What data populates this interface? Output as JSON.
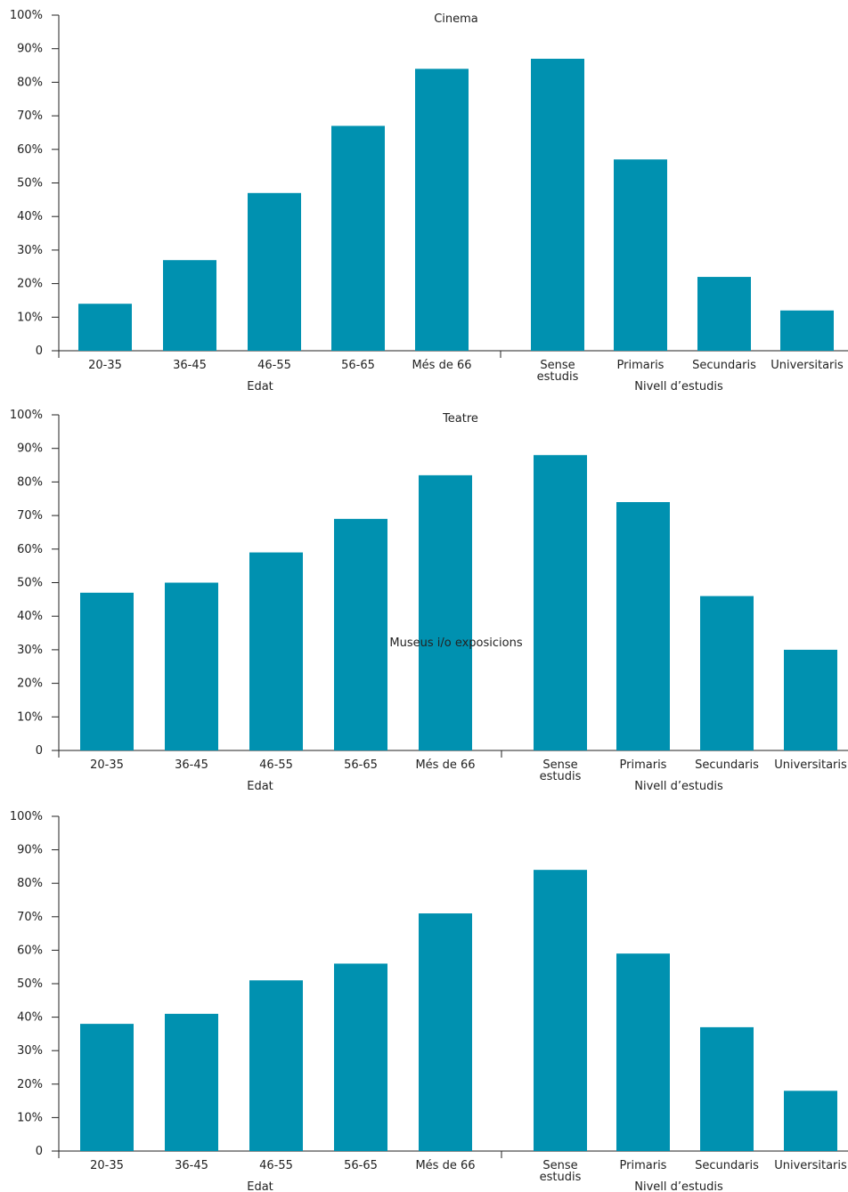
{
  "bar_color": "#0091B0",
  "y_ticks": [
    "0",
    "10%",
    "20%",
    "30%",
    "40%",
    "50%",
    "60%",
    "70%",
    "80%",
    "90%",
    "100%"
  ],
  "age_group": {
    "label": "Edat",
    "categories": [
      "20-35",
      "36-45",
      "46-55",
      "56-65",
      "Més de 66"
    ]
  },
  "education_group": {
    "label": "Nivell d’estudis",
    "categories": [
      [
        "Sense",
        "estudis"
      ],
      [
        "Primaris"
      ],
      [
        "Secundaris"
      ],
      [
        "Universitaris"
      ]
    ]
  },
  "chart_data": [
    {
      "type": "bar",
      "title": "Cinema",
      "ylim": [
        0,
        100
      ],
      "categories": [
        "20-35",
        "36-45",
        "46-55",
        "56-65",
        "Més de 66",
        "Sense estudis",
        "Primaris",
        "Secundaris",
        "Universitaris"
      ],
      "values": [
        14,
        27,
        47,
        67,
        84,
        87,
        57,
        22,
        12
      ]
    },
    {
      "type": "bar",
      "title": "Teatre",
      "ylim": [
        0,
        100
      ],
      "categories": [
        "20-35",
        "36-45",
        "46-55",
        "56-65",
        "Més de 66",
        "Sense estudis",
        "Primaris",
        "Secundaris",
        "Universitaris"
      ],
      "values": [
        47,
        50,
        59,
        69,
        82,
        88,
        74,
        46,
        30
      ]
    },
    {
      "type": "bar",
      "title": "Museus i/o exposicions",
      "ylim": [
        0,
        100
      ],
      "categories": [
        "20-35",
        "36-45",
        "46-55",
        "56-65",
        "Més de 66",
        "Sense estudis",
        "Primaris",
        "Secundaris",
        "Universitaris"
      ],
      "values": [
        38,
        41,
        51,
        56,
        71,
        84,
        59,
        37,
        18
      ]
    }
  ]
}
